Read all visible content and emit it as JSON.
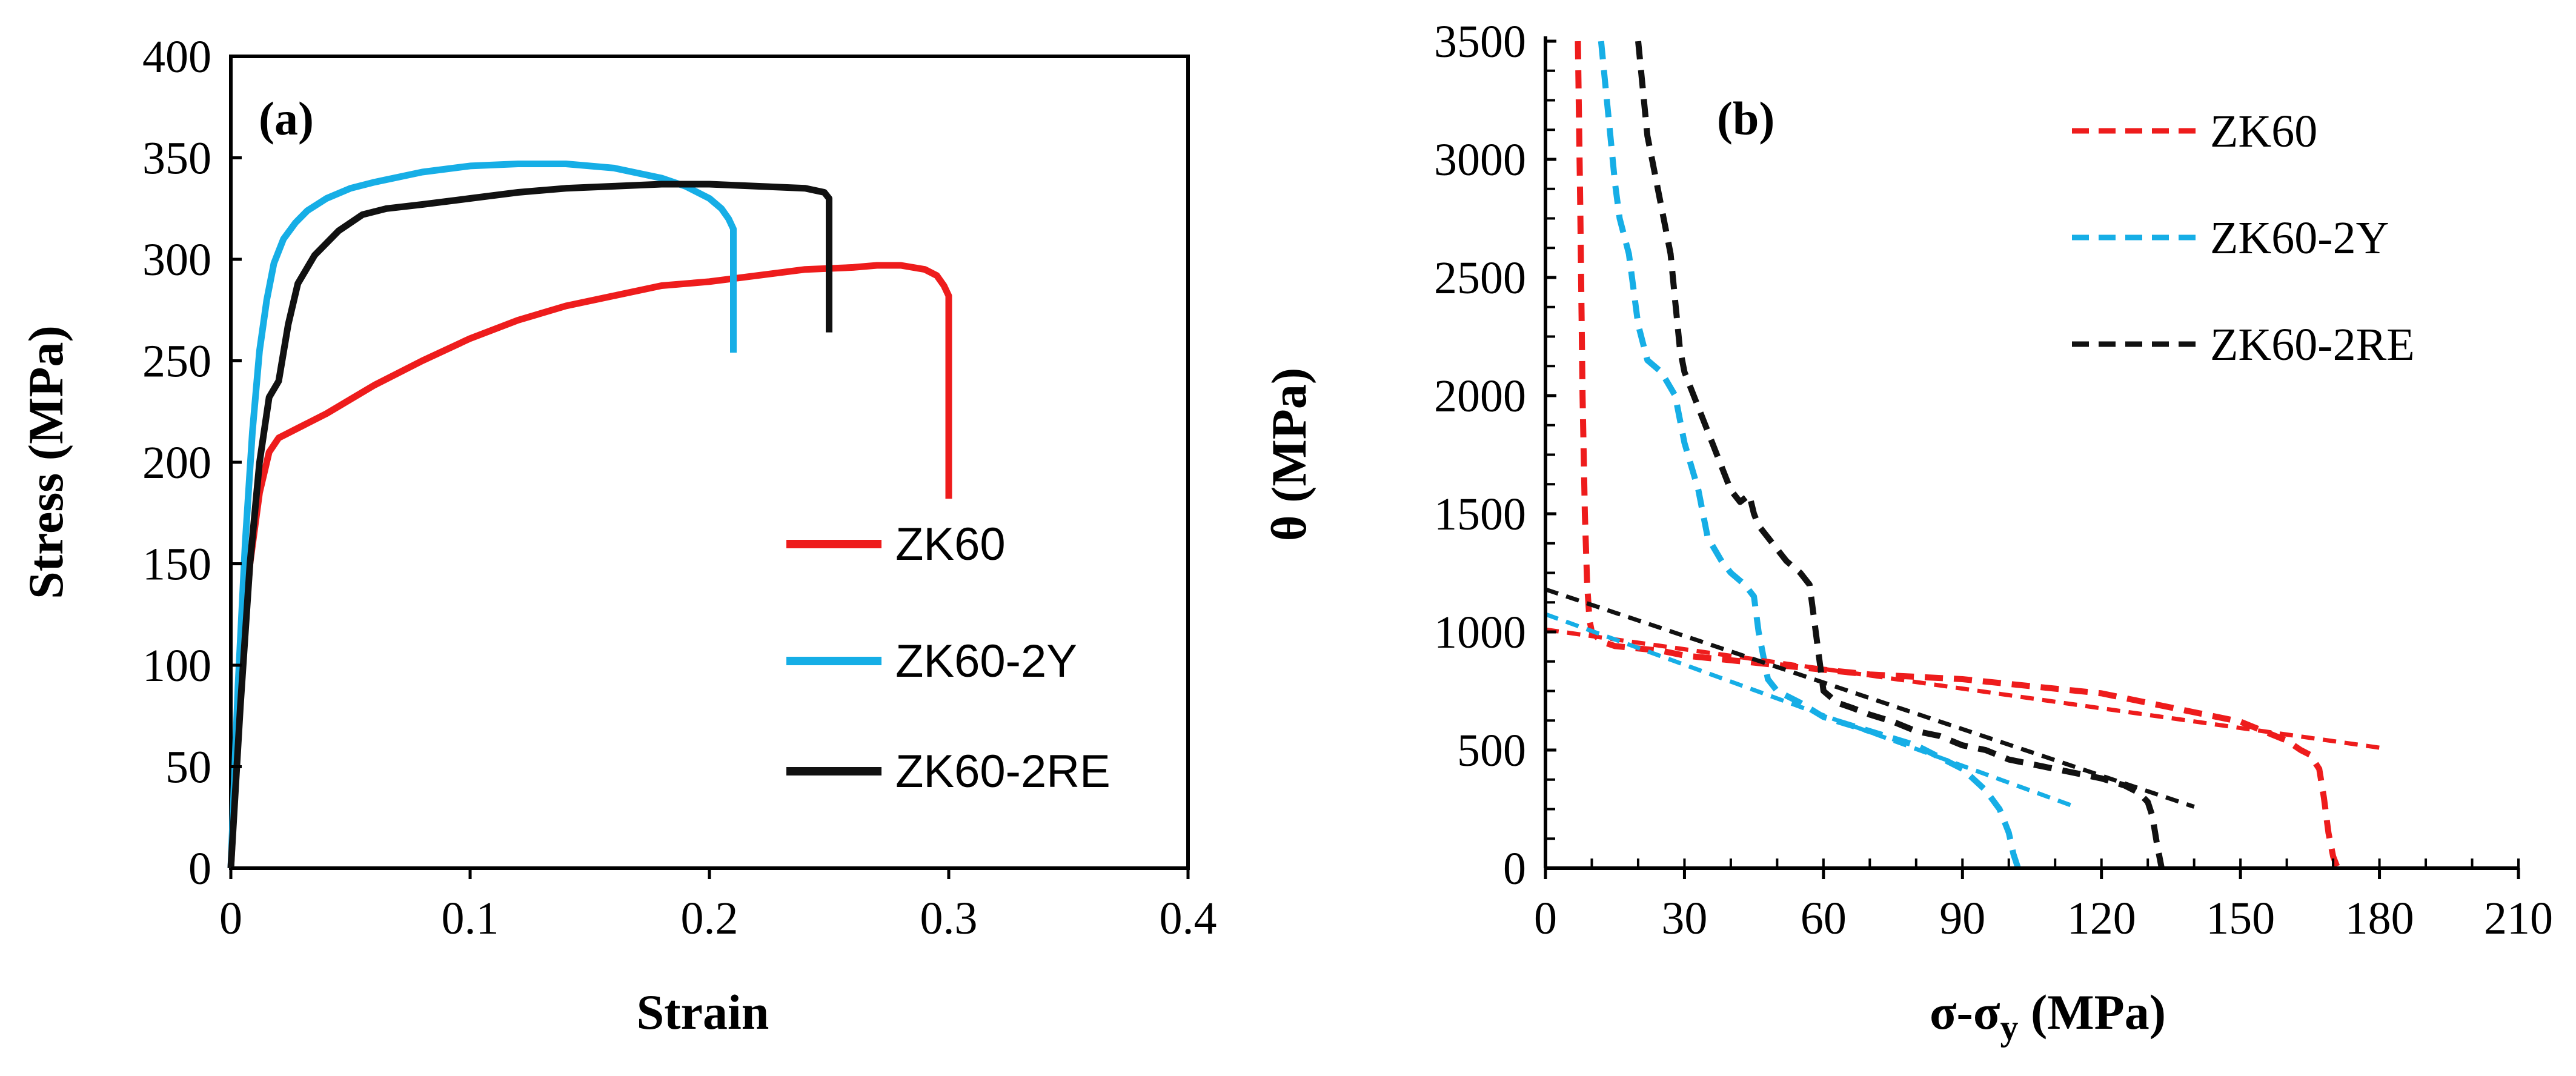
{
  "colors": {
    "zk60": "#ee1c1c",
    "zk60_2y": "#16aee6",
    "zk60_2re": "#111111"
  },
  "chart_data": [
    {
      "type": "line",
      "panel_label": "(a)",
      "xlabel": "Strain",
      "ylabel": "Stress  (MPa)",
      "xlim": [
        0,
        0.4
      ],
      "ylim": [
        0,
        400
      ],
      "xticks": [
        0,
        0.1,
        0.2,
        0.3,
        0.4
      ],
      "xtick_labels": [
        "0",
        "0.1",
        "0.2",
        "0.3",
        "0.4"
      ],
      "yticks": [
        0,
        50,
        100,
        150,
        200,
        250,
        300,
        350,
        400
      ],
      "ytick_labels": [
        "0",
        "50",
        "100",
        "150",
        "200",
        "250",
        "300",
        "350",
        "400"
      ],
      "legend": [
        "ZK60",
        "ZK60-2Y",
        "ZK60-2RE"
      ],
      "series": [
        {
          "name": "ZK60",
          "color": "#ee1c1c",
          "x": [
            0,
            0.004,
            0.008,
            0.012,
            0.016,
            0.02,
            0.03,
            0.04,
            0.05,
            0.06,
            0.08,
            0.1,
            0.12,
            0.14,
            0.16,
            0.18,
            0.2,
            0.22,
            0.24,
            0.26,
            0.27,
            0.28,
            0.29,
            0.295,
            0.298,
            0.3,
            0.3,
            0.3
          ],
          "y": [
            0,
            90,
            150,
            185,
            205,
            212,
            218,
            224,
            231,
            238,
            250,
            261,
            270,
            277,
            282,
            287,
            289,
            292,
            295,
            296,
            297,
            297,
            295,
            292,
            287,
            282,
            230,
            182
          ]
        },
        {
          "name": "ZK60-2Y",
          "color": "#16aee6",
          "x": [
            0,
            0.003,
            0.006,
            0.009,
            0.012,
            0.015,
            0.018,
            0.022,
            0.027,
            0.032,
            0.04,
            0.05,
            0.06,
            0.08,
            0.1,
            0.12,
            0.14,
            0.16,
            0.18,
            0.19,
            0.2,
            0.205,
            0.208,
            0.21,
            0.21,
            0.21
          ],
          "y": [
            0,
            90,
            160,
            215,
            255,
            280,
            298,
            310,
            318,
            324,
            330,
            335,
            338,
            343,
            346,
            347,
            347,
            345,
            340,
            336,
            330,
            325,
            320,
            315,
            285,
            254
          ]
        },
        {
          "name": "ZK60-2RE",
          "color": "#111111",
          "x": [
            0,
            0.004,
            0.008,
            0.012,
            0.016,
            0.02,
            0.024,
            0.028,
            0.035,
            0.045,
            0.055,
            0.065,
            0.08,
            0.1,
            0.12,
            0.14,
            0.16,
            0.18,
            0.2,
            0.22,
            0.24,
            0.248,
            0.25,
            0.25,
            0.25
          ],
          "y": [
            0,
            80,
            150,
            200,
            232,
            240,
            268,
            288,
            302,
            314,
            322,
            325,
            327,
            330,
            333,
            335,
            336,
            337,
            337,
            336,
            335,
            333,
            330,
            300,
            264
          ]
        }
      ]
    },
    {
      "type": "line",
      "panel_label": "(b)",
      "xlabel": "σ-σy (MPa)",
      "xlabel_parts": {
        "main": "σ-σ",
        "sub": "y",
        "units": " (MPa)"
      },
      "ylabel": "θ (MPa)",
      "xlim": [
        0,
        210
      ],
      "ylim": [
        0,
        3500
      ],
      "xticks": [
        0,
        30,
        60,
        90,
        120,
        150,
        180,
        210
      ],
      "xtick_labels": [
        "0",
        "30",
        "60",
        "90",
        "120",
        "150",
        "180",
        "210"
      ],
      "yticks": [
        0,
        500,
        1000,
        1500,
        2000,
        2500,
        3000,
        3500
      ],
      "ytick_labels": [
        "0",
        "500",
        "1000",
        "1500",
        "2000",
        "2500",
        "3000",
        "3500"
      ],
      "legend": [
        "ZK60",
        "ZK60-2Y",
        "ZK60-2RE"
      ],
      "series": [
        {
          "name": "ZK60",
          "style": "dashed",
          "color": "#ee1c1c",
          "x": [
            7,
            7.5,
            8,
            8.5,
            9,
            9.5,
            10,
            12,
            15,
            20,
            25,
            30,
            40,
            50,
            60,
            70,
            80,
            90,
            100,
            110,
            120,
            130,
            140,
            150,
            155,
            160,
            163,
            165,
            167,
            168,
            169,
            170,
            171
          ],
          "y": [
            3500,
            2800,
            2000,
            1500,
            1200,
            1050,
            1000,
            960,
            940,
            930,
            920,
            900,
            880,
            860,
            840,
            820,
            810,
            800,
            780,
            760,
            740,
            700,
            660,
            620,
            580,
            540,
            500,
            480,
            420,
            300,
            150,
            50,
            0
          ]
        },
        {
          "name": "ZK60-2Y",
          "style": "dashed",
          "color": "#16aee6",
          "x": [
            12,
            13,
            14,
            15,
            16,
            18,
            20,
            22,
            25,
            28,
            30,
            33,
            35,
            38,
            40,
            43,
            45,
            46,
            47,
            48,
            50,
            55,
            60,
            70,
            80,
            90,
            95,
            98,
            100,
            101,
            102
          ],
          "y": [
            3500,
            3300,
            3100,
            2900,
            2750,
            2600,
            2300,
            2150,
            2100,
            2000,
            1800,
            1600,
            1400,
            1300,
            1250,
            1200,
            1150,
            1000,
            900,
            800,
            750,
            700,
            640,
            580,
            520,
            420,
            330,
            250,
            150,
            60,
            0
          ]
        },
        {
          "name": "ZK60-2RE",
          "style": "dashed",
          "color": "#111111",
          "x": [
            20,
            21,
            22,
            23,
            25,
            27,
            28,
            29,
            30,
            32,
            35,
            38,
            40,
            42,
            44,
            45,
            46,
            48,
            50,
            52,
            55,
            57,
            58,
            59,
            60,
            63,
            66,
            70,
            75,
            80,
            85,
            90,
            95,
            100,
            110,
            120,
            125,
            128,
            130,
            131,
            132,
            133
          ],
          "y": [
            3500,
            3300,
            3100,
            3000,
            2800,
            2600,
            2400,
            2200,
            2100,
            2000,
            1850,
            1700,
            1600,
            1550,
            1580,
            1500,
            1450,
            1400,
            1350,
            1300,
            1250,
            1200,
            1050,
            900,
            750,
            700,
            680,
            650,
            620,
            580,
            560,
            520,
            500,
            460,
            420,
            380,
            350,
            320,
            280,
            220,
            100,
            0
          ]
        },
        {
          "name": "ZK60 fit",
          "style": "dashed-fit",
          "color": "#ee1c1c",
          "x": [
            0,
            180
          ],
          "y": [
            1010,
            510
          ]
        },
        {
          "name": "ZK60-2Y fit",
          "style": "dashed-fit",
          "color": "#16aee6",
          "x": [
            0,
            115
          ],
          "y": [
            1075,
            255
          ]
        },
        {
          "name": "ZK60-2RE fit",
          "style": "dashed-fit",
          "color": "#111111",
          "x": [
            0,
            140
          ],
          "y": [
            1180,
            260
          ]
        }
      ]
    }
  ]
}
